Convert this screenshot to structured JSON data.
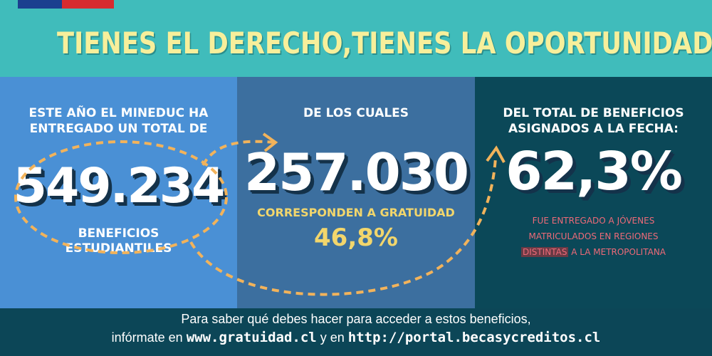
{
  "header": {
    "headline": "TIENES EL DERECHO,TIENES LA OPORTUNIDAD"
  },
  "panel1": {
    "intro_line1": "ESTE AÑO EL MINEDUC HA",
    "intro_line2": "ENTREGADO UN TOTAL DE",
    "total_benefits": "549.234",
    "label_line1": "BENEFICIOS",
    "label_line2": "ESTUDIANTILES"
  },
  "panel2": {
    "intro": "DE LOS CUALES",
    "gratuidad_count": "257.030",
    "label": "CORRESPONDEN A GRATUIDAD",
    "percentage": "46,8%"
  },
  "panel3": {
    "intro_line1": "DEL TOTAL DE BENEFICIOS",
    "intro_line2": "ASIGNADOS A LA FECHA:",
    "percentage": "62,3%",
    "note_line1": "FUE ENTREGADO A JÓVENES",
    "note_line2": "MATRICULADOS EN REGIONES",
    "note_highlight": "DISTINTAS",
    "note_line3_rest": " A LA METROPOLITANA"
  },
  "footer": {
    "line1": "Para saber qué debes hacer para acceder a estos beneficios,",
    "line2_prefix": "infórmate en ",
    "link1": "www.gratuidad.cl",
    "line2_middle": " y en ",
    "link2": "http://portal.becasycreditos.cl"
  },
  "colors": {
    "banner": "#40bcbb",
    "headline": "#f7ef9b",
    "panel1": "#4a90d5",
    "panel2": "#3c6f9f",
    "panel3": "#0b4858",
    "accent_yellow": "#f2d66c",
    "accent_pink": "#ee6a78",
    "arrow_orange": "#f2b35b"
  }
}
